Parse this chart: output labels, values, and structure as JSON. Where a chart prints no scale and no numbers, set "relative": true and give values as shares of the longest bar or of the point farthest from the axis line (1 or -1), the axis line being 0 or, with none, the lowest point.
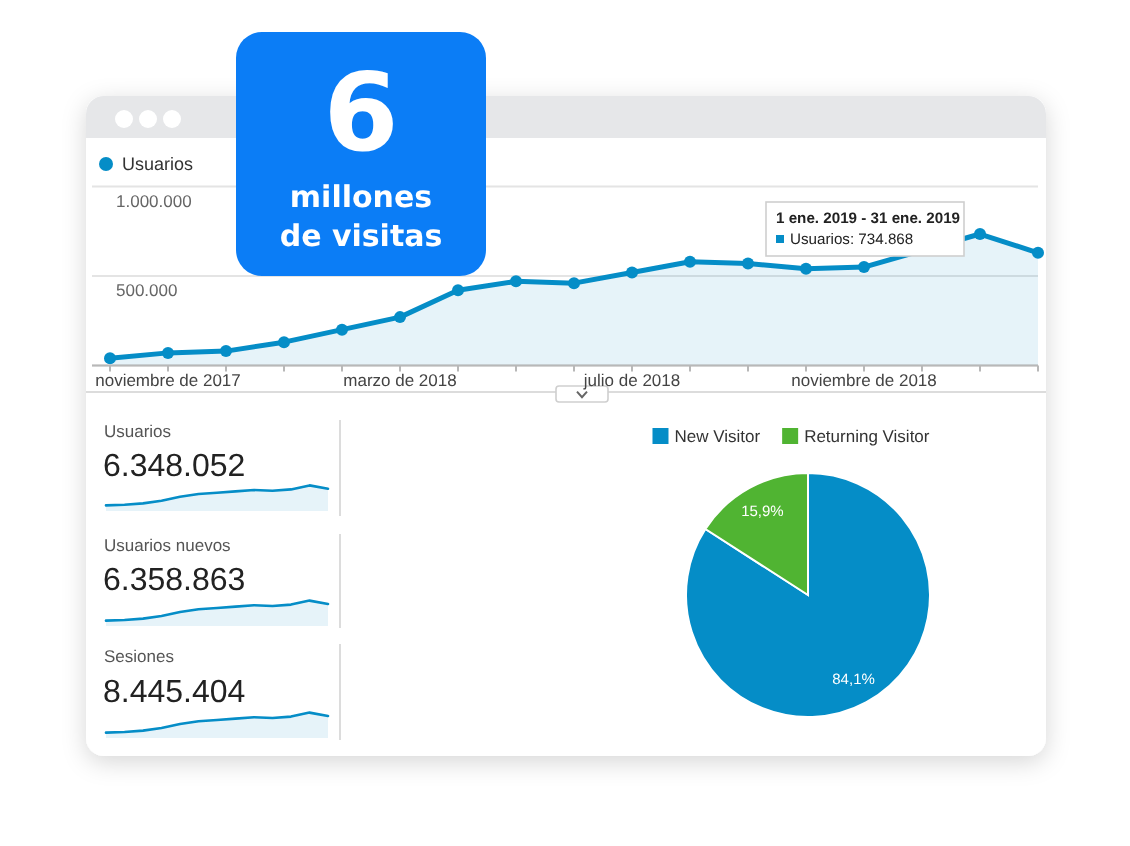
{
  "chart_data": [
    {
      "type": "other",
      "title": "6",
      "subtitle": "millones de visitas"
    },
    {
      "type": "area",
      "categories": [
        null,
        "noviembre de 2017",
        null,
        null,
        null,
        "marzo de 2018",
        null,
        null,
        null,
        "julio de 2018",
        null,
        null,
        null,
        "noviembre de 2018",
        null,
        null,
        null
      ],
      "series": [
        {
          "name": "Usuarios",
          "color": "#058dc7",
          "values": [
            40000,
            70000,
            80000,
            130000,
            200000,
            270000,
            420000,
            470000,
            460000,
            520000,
            580000,
            570000,
            540000,
            550000,
            null,
            734868,
            630000
          ]
        }
      ],
      "ylim": [
        0,
        1000000
      ],
      "yticks": [
        {
          "value": 0,
          "label": null
        },
        {
          "value": 500000,
          "label": "500.000"
        },
        {
          "value": 1000000,
          "label": "1.000.000"
        }
      ],
      "grid": "y",
      "legend": "top left",
      "marker": "circle",
      "annotations": [
        "1 ene. 2019 - 31 ene. 2019",
        "Usuarios: 734.868"
      ]
    },
    {
      "type": "area",
      "title": "Usuarios",
      "annotations": [
        "6.348.052"
      ],
      "relative": true,
      "categories": [
        null,
        null,
        null,
        null,
        null,
        null,
        null,
        null,
        null,
        null,
        null,
        null,
        null
      ],
      "values": [
        0,
        0.03,
        0.1,
        0.23,
        0.43,
        0.57,
        0.63,
        0.7,
        0.77,
        0.73,
        0.8,
        1,
        0.83
      ],
      "color": "#058dc7"
    },
    {
      "type": "area",
      "title": "Usuarios nuevos",
      "annotations": [
        "6.358.863"
      ],
      "relative": true,
      "categories": [
        null,
        null,
        null,
        null,
        null,
        null,
        null,
        null,
        null,
        null,
        null,
        null,
        null
      ],
      "values": [
        0,
        0.03,
        0.1,
        0.23,
        0.43,
        0.57,
        0.63,
        0.7,
        0.77,
        0.73,
        0.8,
        1,
        0.83
      ],
      "color": "#058dc7"
    },
    {
      "type": "area",
      "title": "Sesiones",
      "annotations": [
        "8.445.404"
      ],
      "relative": true,
      "categories": [
        null,
        null,
        null,
        null,
        null,
        null,
        null,
        null,
        null,
        null,
        null,
        null,
        null
      ],
      "values": [
        0,
        0.03,
        0.1,
        0.23,
        0.43,
        0.57,
        0.63,
        0.7,
        0.77,
        0.73,
        0.8,
        1,
        0.83
      ],
      "color": "#058dc7"
    },
    {
      "type": "pie",
      "categories": [
        "New Visitor",
        "Returning Visitor"
      ],
      "values": [
        84.1,
        15.9
      ],
      "colors": [
        "#058dc7",
        "#50b432"
      ],
      "value_labels": [
        "84,1%",
        "15,9%"
      ],
      "legend": "top"
    }
  ]
}
